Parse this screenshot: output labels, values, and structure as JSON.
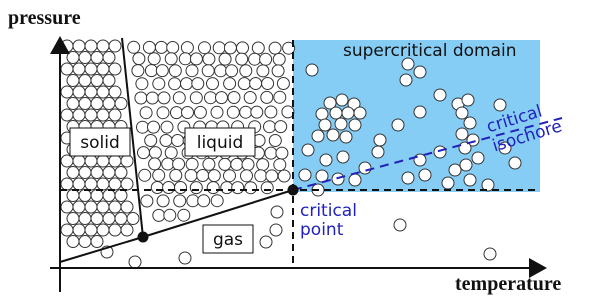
{
  "axes": {
    "y_label": "pressure",
    "x_label": "temperature"
  },
  "regions": {
    "supercritical": "supercritical domain",
    "solid": "solid",
    "liquid": "liquid",
    "gas": "gas"
  },
  "annotations": {
    "critical_point": [
      "critical",
      "point"
    ],
    "critical_isochore": [
      "critical",
      "isochore"
    ]
  }
}
